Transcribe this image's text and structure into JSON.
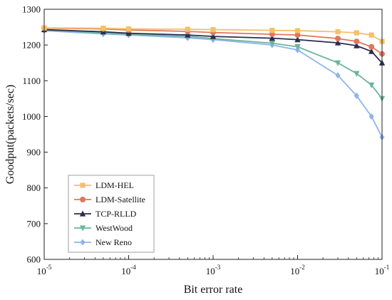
{
  "chart_data": {
    "type": "line",
    "title": "",
    "xlabel": "Bit error rate",
    "ylabel": "Goodput(packets/sec)",
    "xscale": "log",
    "xlim": [
      1e-05,
      0.1
    ],
    "ylim": [
      600,
      1300
    ],
    "yticks": [
      600,
      700,
      800,
      900,
      1000,
      1100,
      1200,
      1300
    ],
    "xticks": [
      {
        "value": 1e-05,
        "base": "10",
        "exp": "-5"
      },
      {
        "value": 0.0001,
        "base": "10",
        "exp": "-4"
      },
      {
        "value": 0.001,
        "base": "10",
        "exp": "-3"
      },
      {
        "value": 0.01,
        "base": "10",
        "exp": "-2"
      },
      {
        "value": 0.1,
        "base": "10",
        "exp": "-1"
      }
    ],
    "x": [
      1e-05,
      5e-05,
      0.0001,
      0.0005,
      0.001,
      0.005,
      0.01,
      0.03,
      0.05,
      0.075,
      0.1
    ],
    "legend_position": "lower-left",
    "grid": false,
    "series": [
      {
        "name": "LDM-HEL",
        "color": "#f5c06a",
        "marker": "square",
        "values": [
          1248,
          1247,
          1245,
          1244,
          1243,
          1241,
          1240,
          1237,
          1234,
          1228,
          1210
        ]
      },
      {
        "name": "LDM-Satellite",
        "color": "#e0775b",
        "marker": "circle",
        "values": [
          1247,
          1245,
          1242,
          1238,
          1235,
          1230,
          1228,
          1218,
          1210,
          1195,
          1175
        ]
      },
      {
        "name": "TCP-RLLD",
        "color": "#2b2d4e",
        "marker": "triangle-up",
        "values": [
          1243,
          1237,
          1233,
          1228,
          1224,
          1219,
          1215,
          1206,
          1198,
          1182,
          1150
        ]
      },
      {
        "name": "WestWood",
        "color": "#6cb59c",
        "marker": "triangle-down",
        "values": [
          1242,
          1234,
          1230,
          1224,
          1218,
          1205,
          1195,
          1150,
          1120,
          1088,
          1050
        ]
      },
      {
        "name": "New Reno",
        "color": "#8fb4ea",
        "marker": "diamond",
        "values": [
          1240,
          1231,
          1228,
          1220,
          1215,
          1200,
          1186,
          1115,
          1058,
          1000,
          942
        ]
      }
    ]
  }
}
